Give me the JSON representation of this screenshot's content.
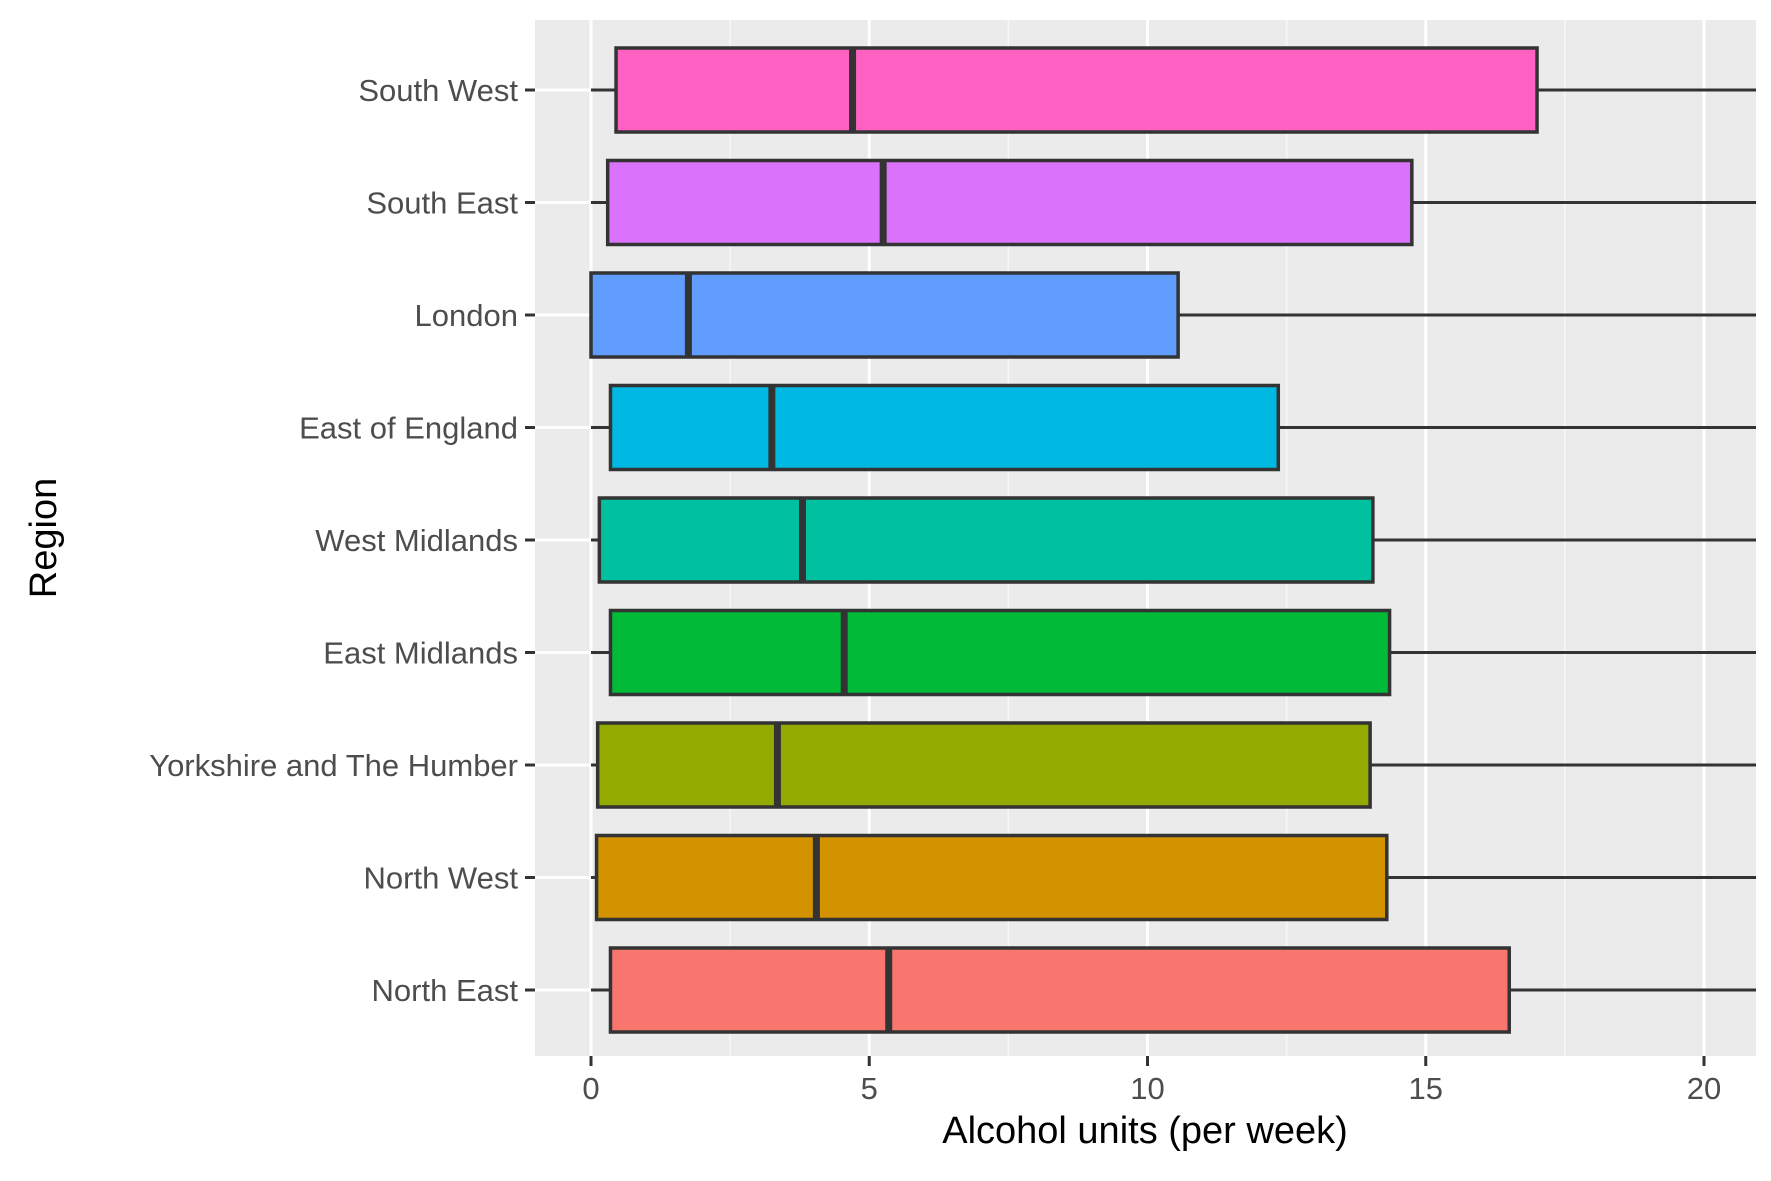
{
  "chart_data": {
    "type": "boxplot",
    "orientation": "horizontal",
    "xlabel": "Alcohol units (per week)",
    "ylabel": "Region",
    "xlim": [
      -1,
      21
    ],
    "x_ticks": [
      0,
      5,
      10,
      15,
      20
    ],
    "x_tick_labels": [
      "0",
      "5",
      "10",
      "15",
      "20"
    ],
    "grid": true,
    "legend": "none",
    "categories": [
      "North East",
      "North West",
      "Yorkshire and The Humber",
      "East Midlands",
      "West Midlands",
      "East of England",
      "London",
      "South East",
      "South West"
    ],
    "series": [
      {
        "category": "North East",
        "whisker_low": 0,
        "q1": 0.35,
        "median": 5.35,
        "q3": 16.5,
        "whisker_high": 21,
        "color": "#F8766D"
      },
      {
        "category": "North West",
        "whisker_low": 0,
        "q1": 0.1,
        "median": 4.05,
        "q3": 14.3,
        "whisker_high": 21,
        "color": "#D39200"
      },
      {
        "category": "Yorkshire and The Humber",
        "whisker_low": 0,
        "q1": 0.12,
        "median": 3.35,
        "q3": 14.0,
        "whisker_high": 21,
        "color": "#93AA00"
      },
      {
        "category": "East Midlands",
        "whisker_low": 0,
        "q1": 0.35,
        "median": 4.55,
        "q3": 14.35,
        "whisker_high": 21,
        "color": "#00BA38"
      },
      {
        "category": "West Midlands",
        "whisker_low": 0,
        "q1": 0.15,
        "median": 3.8,
        "q3": 14.05,
        "whisker_high": 21,
        "color": "#00C19F"
      },
      {
        "category": "East of England",
        "whisker_low": 0,
        "q1": 0.35,
        "median": 3.25,
        "q3": 12.35,
        "whisker_high": 21,
        "color": "#00B9E3"
      },
      {
        "category": "London",
        "whisker_low": 0,
        "q1": 0.0,
        "median": 1.75,
        "q3": 10.55,
        "whisker_high": 21,
        "color": "#619CFF"
      },
      {
        "category": "South East",
        "whisker_low": 0,
        "q1": 0.3,
        "median": 5.25,
        "q3": 14.75,
        "whisker_high": 21,
        "color": "#DB72FB"
      },
      {
        "category": "South West",
        "whisker_low": 0,
        "q1": 0.45,
        "median": 4.7,
        "q3": 17.0,
        "whisker_high": 21,
        "color": "#FF61C3"
      }
    ],
    "colors": {
      "panel_background": "#EBEBEB",
      "grid_line": "#FFFFFF",
      "box_outline": "#333333",
      "tick_text": "#4D4D4D",
      "tick_mark": "#333333"
    }
  }
}
